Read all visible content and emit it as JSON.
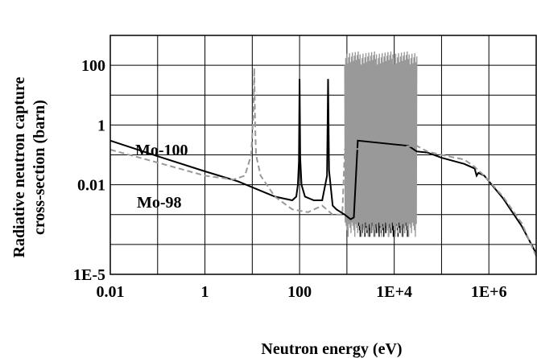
{
  "chart_data": {
    "type": "line",
    "xlabel": "Neutron energy (eV)",
    "ylabel_lines": [
      "Radiative neutron capture",
      "cross-section (barn)"
    ],
    "x_scale": "log",
    "y_scale": "log",
    "xlim": [
      0.01,
      10000000
    ],
    "ylim": [
      1e-05,
      1000
    ],
    "grid": true,
    "x_ticks": [
      {
        "value": 0.01,
        "label": "0.01"
      },
      {
        "value": 1,
        "label": "1"
      },
      {
        "value": 100,
        "label": "100"
      },
      {
        "value": 10000,
        "label": "1E+4"
      },
      {
        "value": 1000000,
        "label": "1E+6"
      }
    ],
    "y_ticks": [
      {
        "value": 1e-05,
        "label": "1E-5"
      },
      {
        "value": 0.01,
        "label": "0.01"
      },
      {
        "value": 1,
        "label": "1"
      },
      {
        "value": 100,
        "label": "100"
      }
    ],
    "series": [
      {
        "name": "Mo-100",
        "color": "#000000",
        "dash": "solid",
        "x": [
          0.01,
          0.1,
          1,
          5,
          30,
          70,
          85,
          92,
          97,
          100,
          103,
          110,
          130,
          200,
          300,
          380,
          400,
          420,
          500,
          600,
          900,
          1200,
          1400,
          1700,
          20000,
          30000,
          50000,
          100000,
          300000,
          500000,
          550000,
          600000,
          800000,
          2000000,
          5000000,
          10000000
        ],
        "y": [
          0.3,
          0.09,
          0.028,
          0.013,
          0.004,
          0.003,
          0.004,
          0.01,
          0.06,
          35,
          0.08,
          0.01,
          0.004,
          0.003,
          0.003,
          0.02,
          35,
          0.03,
          0.002,
          0.0015,
          0.001,
          0.0007,
          0.0008,
          0.3,
          0.2,
          0.13,
          0.12,
          0.08,
          0.05,
          0.035,
          0.02,
          0.025,
          0.02,
          0.0035,
          0.0004,
          5e-05
        ]
      },
      {
        "name": "Mo-98",
        "color": "#999999",
        "dash": "dashed",
        "x": [
          0.01,
          0.1,
          1,
          4,
          7,
          9.5,
          10.5,
          11,
          11.5,
          12,
          15,
          30,
          70,
          150,
          300,
          500,
          800,
          900,
          30000,
          50000,
          100000,
          300000,
          500000,
          600000,
          800000,
          2000000,
          5000000,
          10000000
        ],
        "y": [
          0.15,
          0.055,
          0.02,
          0.015,
          0.02,
          0.1,
          2,
          80,
          1,
          0.1,
          0.02,
          0.004,
          0.0015,
          0.0012,
          0.002,
          0.001,
          0.001,
          0.15,
          0.2,
          0.13,
          0.1,
          0.07,
          0.04,
          0.03,
          0.02,
          0.004,
          0.0005,
          4e-05
        ]
      }
    ],
    "resonance_regions": [
      {
        "series": "Mo-100",
        "x_start": 1700,
        "x_end": 20000,
        "y_low": 0.0003,
        "y_high": 8
      },
      {
        "series": "Mo-98",
        "x_start": 900,
        "x_end": 30000,
        "y_low": 0.0003,
        "y_high": 300
      }
    ]
  }
}
